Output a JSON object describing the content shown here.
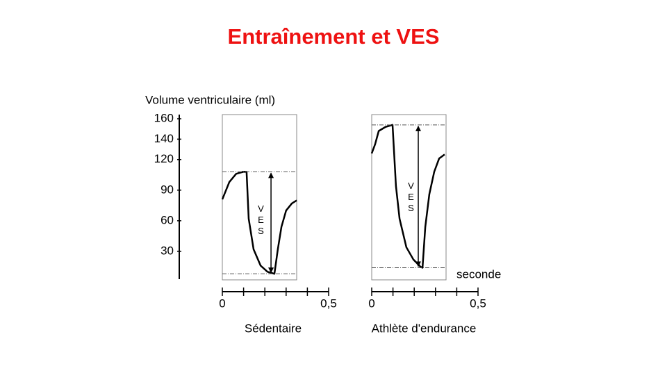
{
  "title": "Entraînement et VES",
  "chart_data": [
    {
      "type": "line",
      "label": "Sédentaire",
      "ylabel": "Volume ventriculaire (ml)",
      "annotation": "VES",
      "x": [
        0,
        0.033,
        0.065,
        0.098,
        0.114,
        0.124,
        0.147,
        0.18,
        0.212,
        0.245,
        0.261,
        0.278,
        0.3,
        0.327,
        0.35
      ],
      "values": [
        81,
        98,
        106,
        108,
        108,
        62,
        32,
        16,
        10,
        8,
        32,
        54,
        70,
        77,
        80
      ],
      "color": "#000000",
      "xlim": [
        0,
        0.5
      ],
      "xticks": [
        0,
        {
          "value": 0.5,
          "label": "0,5"
        }
      ],
      "ylim": [
        0,
        160
      ],
      "yticks": [
        30,
        60,
        90,
        120,
        140,
        160
      ]
    },
    {
      "type": "line",
      "label": "Athlète d'endurance",
      "xlabel": "seconde",
      "annotation": "VES",
      "x": [
        0,
        0.016,
        0.033,
        0.065,
        0.098,
        0.114,
        0.131,
        0.163,
        0.196,
        0.229,
        0.239,
        0.252,
        0.271,
        0.294,
        0.317,
        0.343
      ],
      "values": [
        126,
        135,
        148,
        152,
        154,
        94,
        62,
        34,
        22,
        15,
        14,
        54,
        86,
        108,
        121,
        125
      ],
      "color": "#000000",
      "xlim": [
        0,
        0.5
      ],
      "xticks": [
        0,
        {
          "value": 0.5,
          "label": "0,5"
        }
      ],
      "ylim": [
        0,
        160
      ]
    }
  ]
}
